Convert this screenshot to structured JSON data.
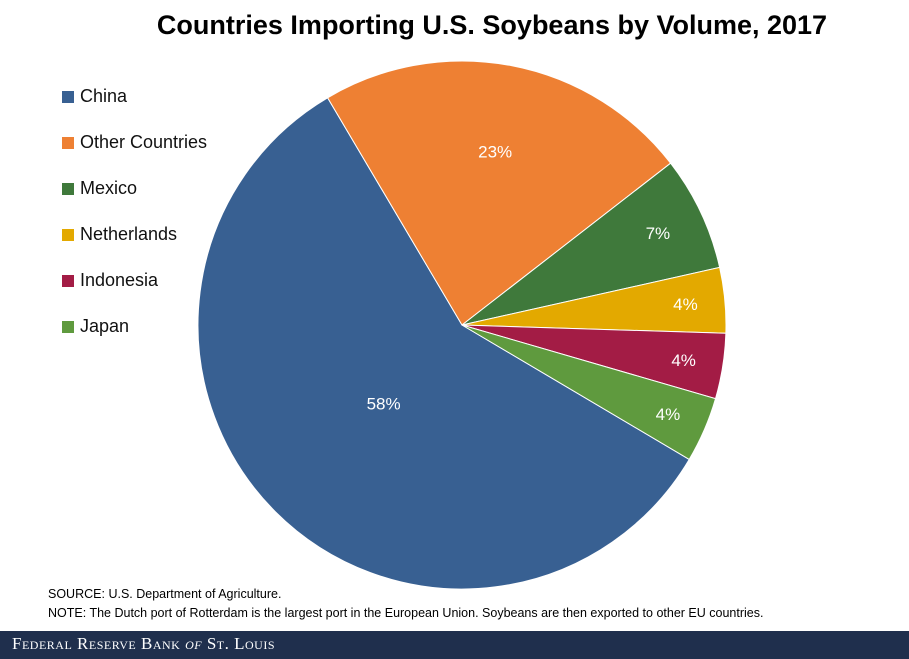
{
  "chart_data": {
    "type": "pie",
    "title": "Countries Importing U.S. Soybeans by Volume, 2017",
    "slices": [
      {
        "name": "China",
        "value": 58,
        "label": "58%",
        "color": "#386092"
      },
      {
        "name": "Other Countries",
        "value": 23,
        "label": "23%",
        "color": "#ee8033"
      },
      {
        "name": "Mexico",
        "value": 7,
        "label": "7%",
        "color": "#3f793b"
      },
      {
        "name": "Netherlands",
        "value": 4,
        "label": "4%",
        "color": "#e3a900"
      },
      {
        "name": "Indonesia",
        "value": 4,
        "label": "4%",
        "color": "#a31c45"
      },
      {
        "name": "Japan",
        "value": 4,
        "label": "4%",
        "color": "#5f9a3e"
      }
    ],
    "legend_position": "left"
  },
  "notes": {
    "source_label": "SOURCE:",
    "source_text": "U.S. Department of Agriculture.",
    "note_label": "NOTE:",
    "note_text": "The Dutch port of Rotterdam is the largest port in the European Union. Soybeans are then exported to other EU countries."
  },
  "footer": {
    "brand_prefix": "Federal Reserve Bank ",
    "brand_of": "of",
    "brand_suffix": " St. Louis"
  }
}
